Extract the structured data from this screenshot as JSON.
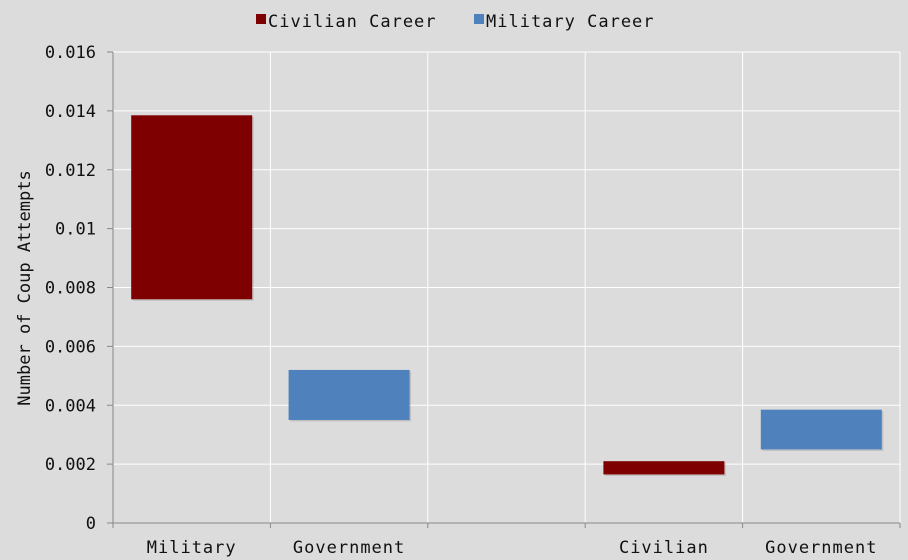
{
  "chart_data": {
    "type": "bar",
    "subtype": "floating-range",
    "ylabel": "Number of Coup Attempts",
    "ylim": [
      0,
      0.016
    ],
    "yticks": [
      0,
      0.002,
      0.004,
      0.006,
      0.008,
      0.01,
      0.012,
      0.014,
      0.016
    ],
    "ytick_labels": [
      "0",
      "0.002",
      "0.004",
      "0.006",
      "0.008",
      "0.01",
      "0.012",
      "0.014",
      "0.016"
    ],
    "categories": [
      "Military",
      "Government",
      "",
      "Civilian",
      "Government"
    ],
    "grid": true,
    "legend_position": "top-center",
    "series": [
      {
        "name": "Civilian Career",
        "color": "#7f0000",
        "bars": [
          {
            "category_index": 0,
            "low": 0.0076,
            "high": 0.01385
          },
          {
            "category_index": 3,
            "low": 0.00165,
            "high": 0.0021
          }
        ]
      },
      {
        "name": "Military Career",
        "color": "#4f81bd",
        "bars": [
          {
            "category_index": 1,
            "low": 0.0035,
            "high": 0.0052
          },
          {
            "category_index": 4,
            "low": 0.0025,
            "high": 0.00385
          }
        ]
      }
    ]
  }
}
